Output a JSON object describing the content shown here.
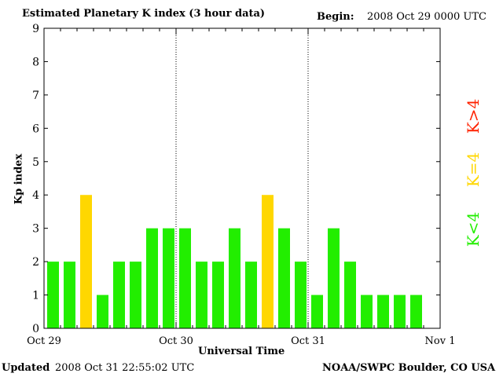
{
  "header": {
    "title": "Estimated Planetary K index (3 hour data)",
    "begin_label": "Begin:",
    "begin_value": "2008 Oct 29 0000 UTC"
  },
  "footer": {
    "updated_label": "Updated",
    "updated_value": "2008 Oct 31 22:55:02 UTC",
    "credit": "NOAA/SWPC Boulder, CO USA"
  },
  "legend": {
    "high": "K>4",
    "mid": "K=4",
    "low": "K<4"
  },
  "colors": {
    "low": "#22ee00",
    "mid": "#ffd700",
    "high": "#ff2200"
  },
  "chart_data": {
    "type": "bar",
    "title": "Estimated Planetary K index (3 hour data)",
    "xlabel": "Universal Time",
    "ylabel": "Kp index",
    "ylim": [
      0,
      9
    ],
    "yticks": [
      "0",
      "1",
      "2",
      "3",
      "4",
      "5",
      "6",
      "7",
      "8",
      "9"
    ],
    "xtick_labels": [
      "Oct 29",
      "Oct 30",
      "Oct 31",
      "Nov 1"
    ],
    "interval_hours": 3,
    "values": [
      2,
      2,
      4,
      1,
      2,
      2,
      3,
      3,
      3,
      2,
      2,
      3,
      2,
      4,
      3,
      2,
      1,
      3,
      2,
      1,
      1,
      1,
      1
    ],
    "grid": false,
    "day_separators": true
  }
}
